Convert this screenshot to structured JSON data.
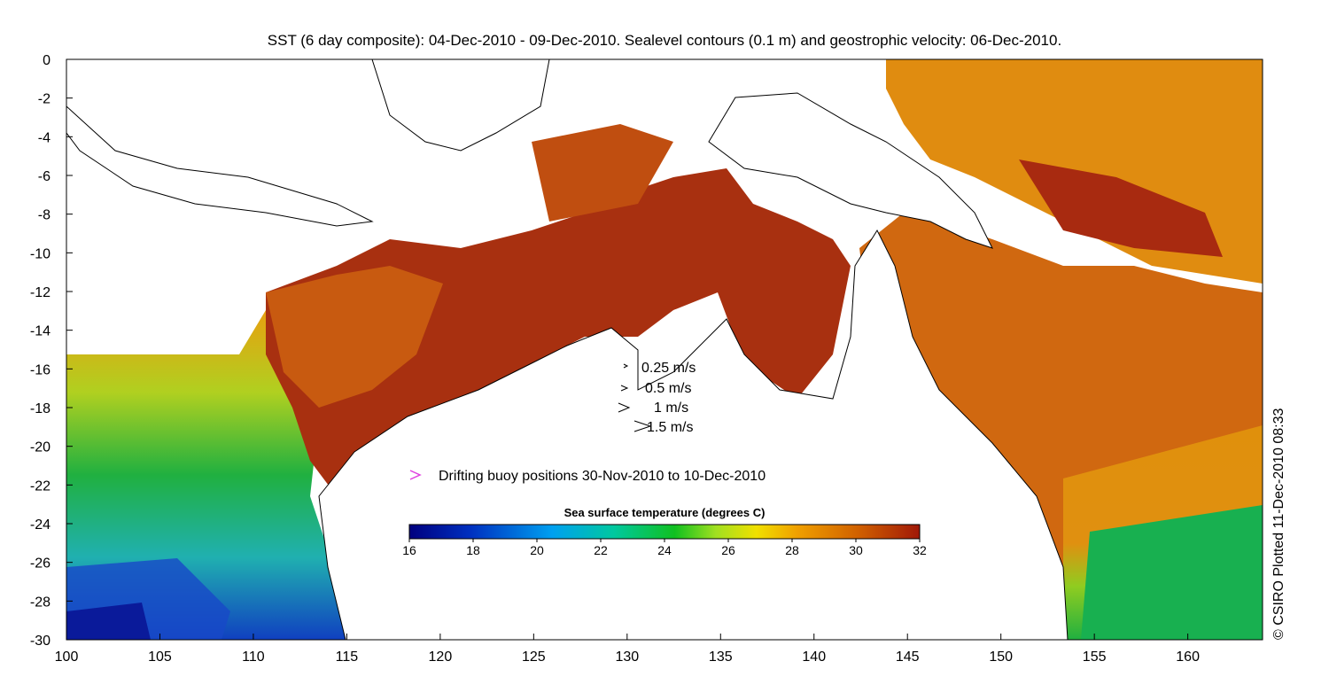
{
  "title": "SST (6 day composite): 04-Dec-2010 - 09-Dec-2010. Sealevel contours (0.1 m) and geostrophic velocity: 06-Dec-2010.",
  "copyright": "© CSIRO Plotted 11-Dec-2010 08:33",
  "axes": {
    "x_ticks": [
      "100",
      "105",
      "110",
      "115",
      "120",
      "125",
      "130",
      "135",
      "140",
      "145",
      "150",
      "155",
      "160"
    ],
    "y_ticks": [
      "0",
      "-2",
      "-4",
      "-6",
      "-8",
      "-10",
      "-12",
      "-14",
      "-16",
      "-18",
      "-20",
      "-22",
      "-24",
      "-26",
      "-28",
      "-30"
    ],
    "xlim": [
      100,
      164
    ],
    "ylim": [
      -30,
      0
    ]
  },
  "velocity_legend": [
    {
      "label": "0.25 m/s",
      "speed": 0.25
    },
    {
      "label": "0.5 m/s",
      "speed": 0.5
    },
    {
      "label": "1 m/s",
      "speed": 1
    },
    {
      "label": "1.5 m/s",
      "speed": 1.5
    }
  ],
  "buoy_legend": {
    "label": "Drifting buoy positions 30-Nov-2010 to 10-Dec-2010",
    "color": "#e040e0"
  },
  "colorbar": {
    "title": "Sea surface temperature (degrees C)",
    "ticks": [
      "16",
      "18",
      "20",
      "22",
      "24",
      "26",
      "28",
      "30",
      "32"
    ],
    "range": [
      16,
      32
    ],
    "colors": [
      "#00007f",
      "#0030c0",
      "#00a0f0",
      "#00c8a0",
      "#10c020",
      "#a0e020",
      "#f0e000",
      "#f0a000",
      "#d06000",
      "#a01808"
    ]
  },
  "colors": {
    "land": "#ffffff",
    "coast": "#000000",
    "contour": "#ffffff",
    "warm": "#c85a10",
    "hot": "#a82a10",
    "cool": "#20b040"
  }
}
